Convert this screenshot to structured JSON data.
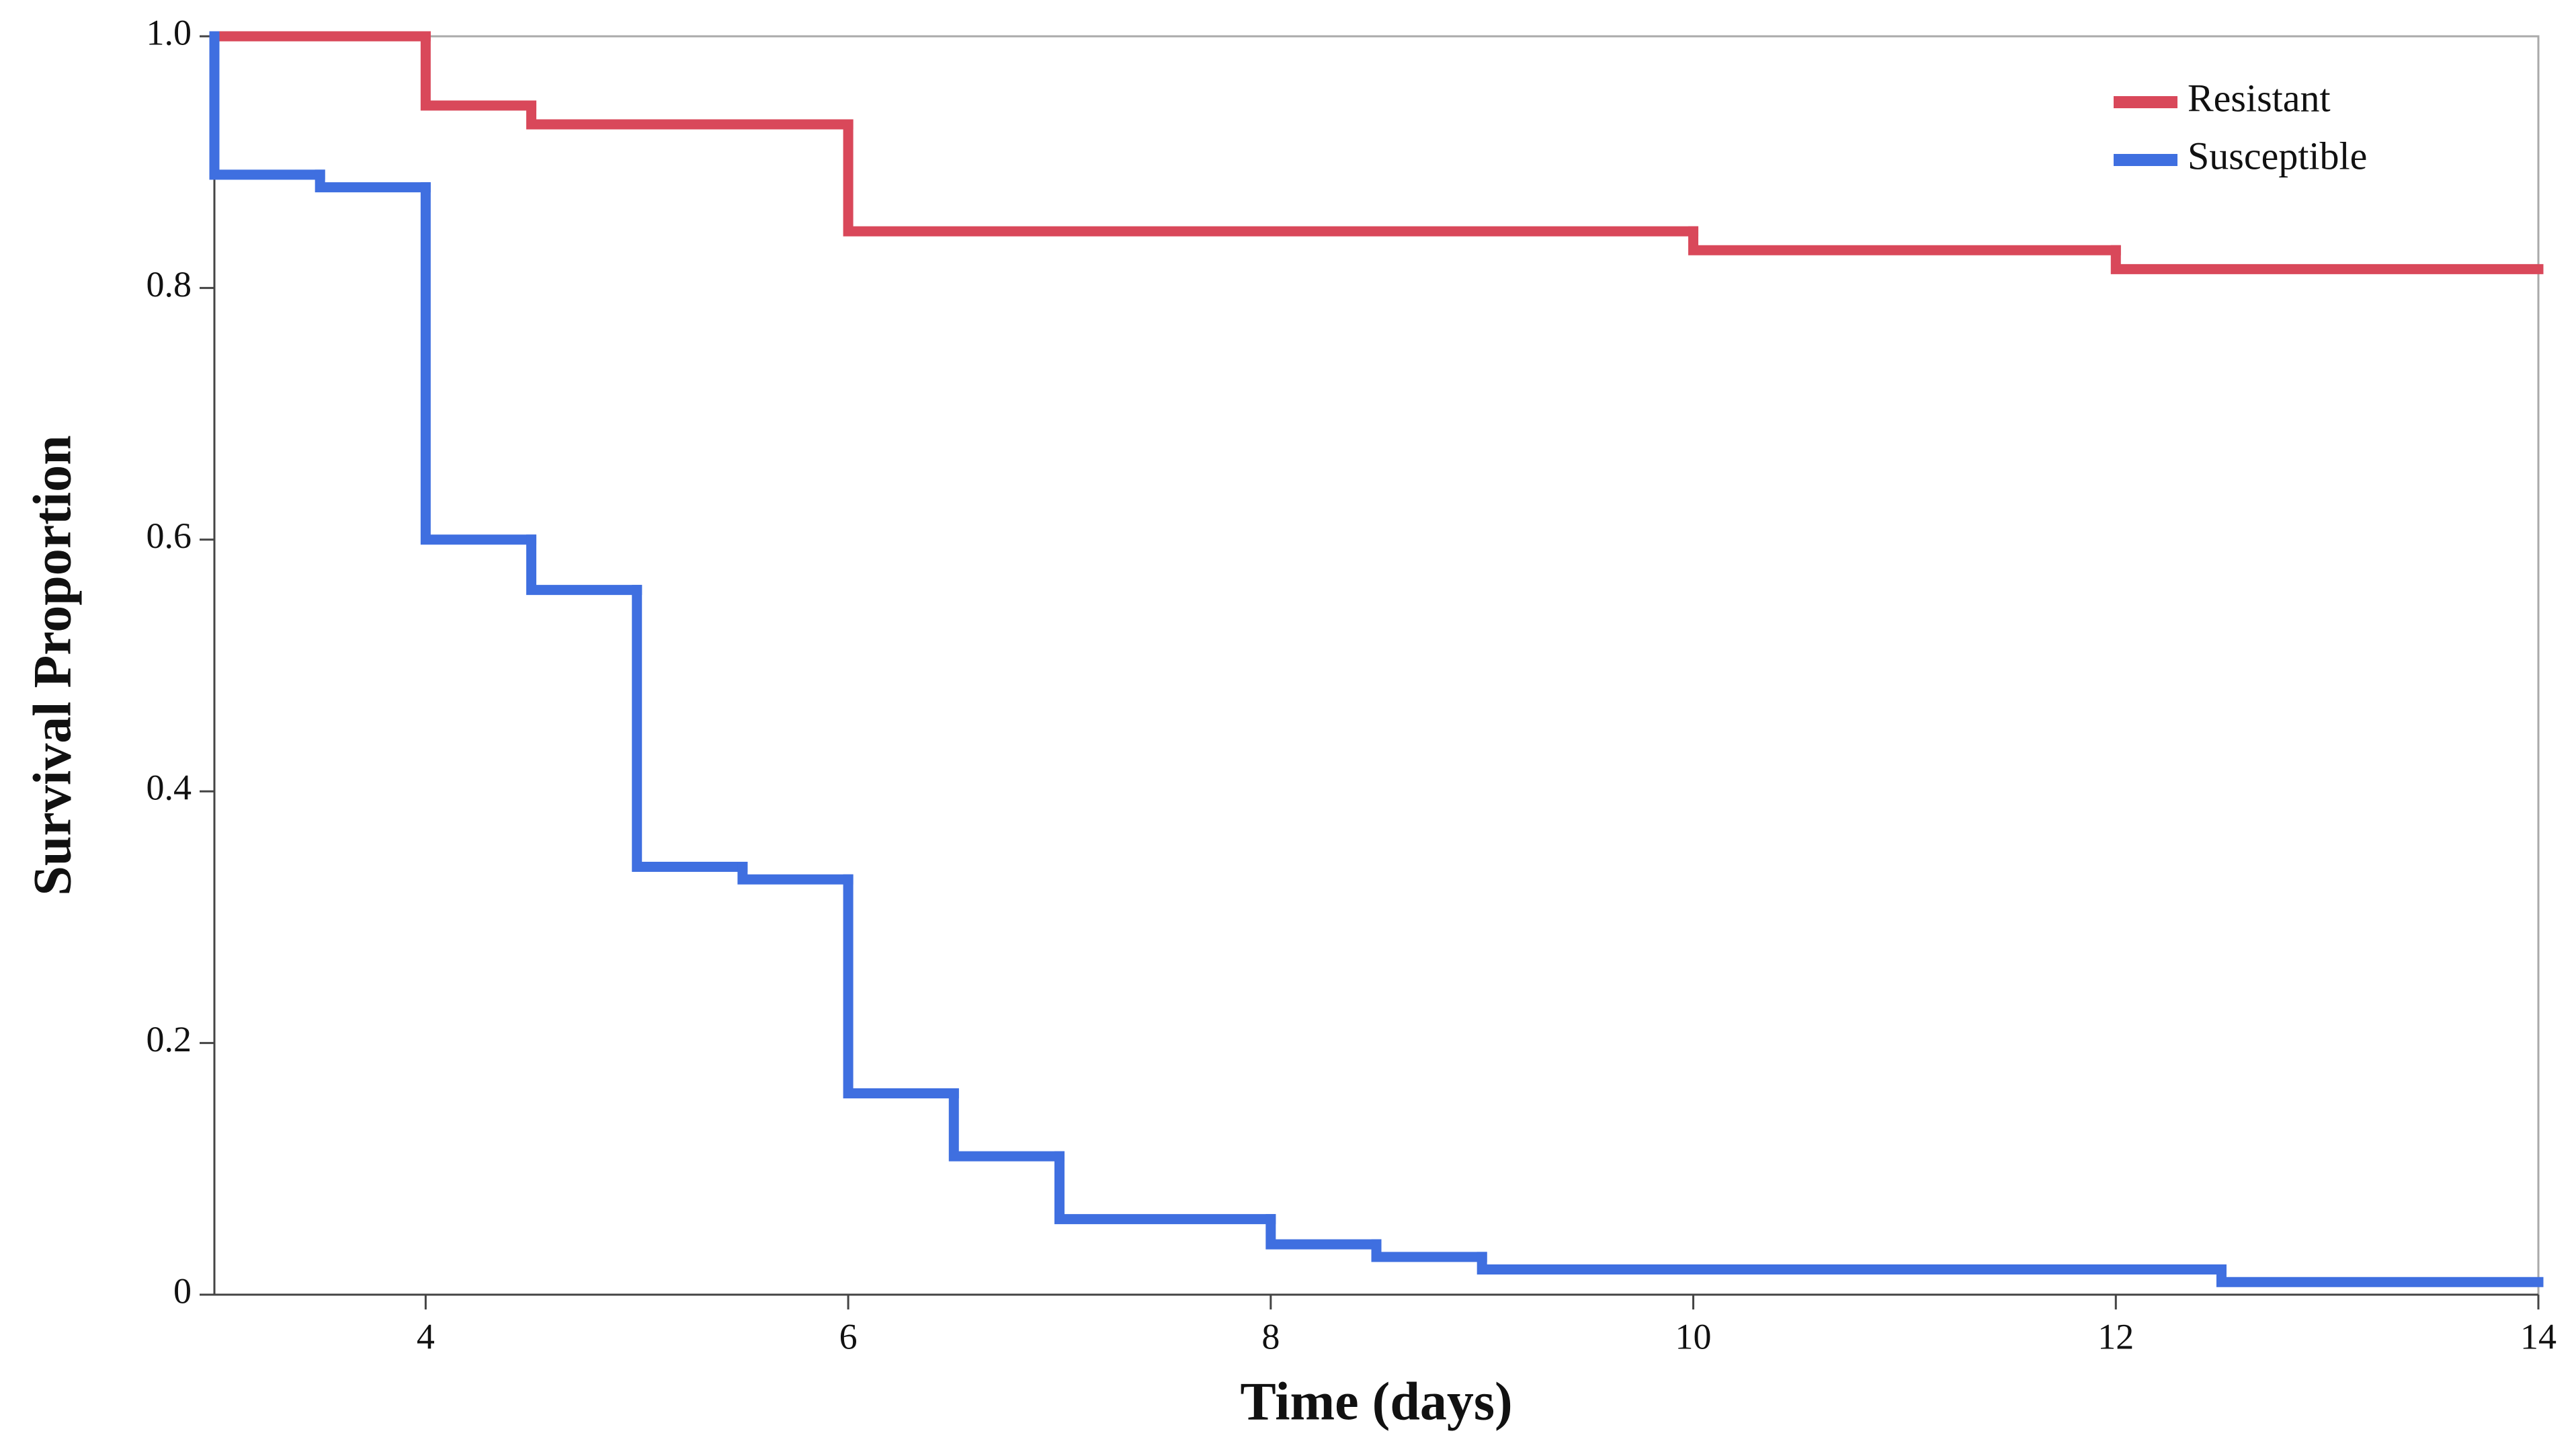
{
  "chart_data": {
    "type": "step",
    "x_label": "Time (days)",
    "y_label": "Survival Proportion",
    "xlim": [
      3,
      14
    ],
    "ylim": [
      0,
      1
    ],
    "xticks": [
      4,
      6,
      8,
      10,
      12,
      14
    ],
    "yticks": [
      0,
      0.2,
      0.4,
      0.6,
      0.8,
      {
        "value": 1,
        "label": "1.0"
      }
    ],
    "legend": "upper right",
    "series": [
      {
        "name": "Resistant",
        "color": "#d9485a",
        "x": [
          3,
          4,
          4.5,
          6,
          10,
          12
        ],
        "values": [
          1.0,
          0.945,
          0.93,
          0.845,
          0.83,
          0.815
        ]
      },
      {
        "name": "Susceptible",
        "color": "#3f6fe0",
        "x": [
          3,
          3,
          3.5,
          4,
          4.5,
          5,
          5.5,
          6,
          6.5,
          7,
          8,
          8.5,
          9,
          12.5
        ],
        "values": [
          1.0,
          0.89,
          0.88,
          0.6,
          0.56,
          0.34,
          0.33,
          0.16,
          0.11,
          0.06,
          0.04,
          0.03,
          0.02,
          0.01
        ]
      }
    ]
  }
}
